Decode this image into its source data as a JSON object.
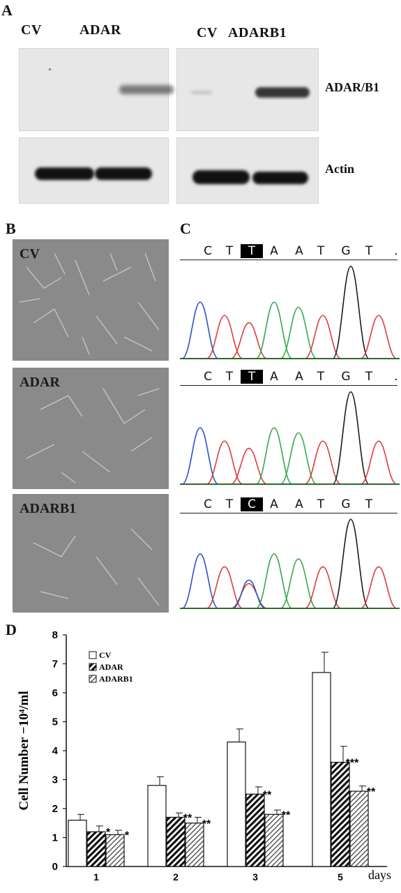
{
  "panels": {
    "a": {
      "letter": "A",
      "left_lanes": [
        "CV",
        "ADAR"
      ],
      "right_lanes": [
        "CV",
        "ADARB1"
      ],
      "row_labels": [
        "ADAR/B1",
        "Actin"
      ]
    },
    "b": {
      "letter": "B",
      "labels": [
        "CV",
        "ADAR",
        "ADARB1"
      ]
    },
    "c": {
      "letter": "C",
      "sequences": [
        {
          "bases": [
            "C",
            "T",
            "T",
            "A",
            "A",
            "T",
            "G",
            "T",
            "."
          ],
          "highlight": 2
        },
        {
          "bases": [
            "C",
            "T",
            "T",
            "A",
            "A",
            "T",
            "G",
            "T",
            "."
          ],
          "highlight": 2
        },
        {
          "bases": [
            "C",
            "T",
            "C",
            "A",
            "A",
            "T",
            "G",
            "T"
          ],
          "highlight": 2
        }
      ]
    },
    "d": {
      "letter": "D"
    }
  },
  "chart_data": {
    "type": "bar",
    "categories": [
      "1",
      "2",
      "3",
      "5"
    ],
    "xlabel": "days",
    "ylabel": "Cell Number −10⁴/ml",
    "ylim": [
      0,
      8
    ],
    "yticks": [
      "0",
      "1",
      "2",
      "3",
      "4",
      "5",
      "6",
      "7",
      "8"
    ],
    "legend_position": "top-left",
    "series": [
      {
        "name": "CV",
        "values": [
          1.6,
          2.8,
          4.3,
          6.7
        ],
        "errors": [
          0.2,
          0.3,
          0.45,
          0.7
        ],
        "stars": [
          "",
          "",
          "",
          ""
        ],
        "fill": "white"
      },
      {
        "name": "ADAR",
        "values": [
          1.2,
          1.7,
          2.5,
          3.6
        ],
        "errors": [
          0.2,
          0.15,
          0.25,
          0.55
        ],
        "stars": [
          "*",
          "**",
          "**",
          "***"
        ],
        "fill": "dense-hatch"
      },
      {
        "name": "ADARB1",
        "values": [
          1.1,
          1.5,
          1.8,
          2.6
        ],
        "errors": [
          0.15,
          0.2,
          0.15,
          0.18
        ],
        "stars": [
          "*",
          "**",
          "**",
          "**"
        ],
        "fill": "light-hatch"
      }
    ]
  }
}
